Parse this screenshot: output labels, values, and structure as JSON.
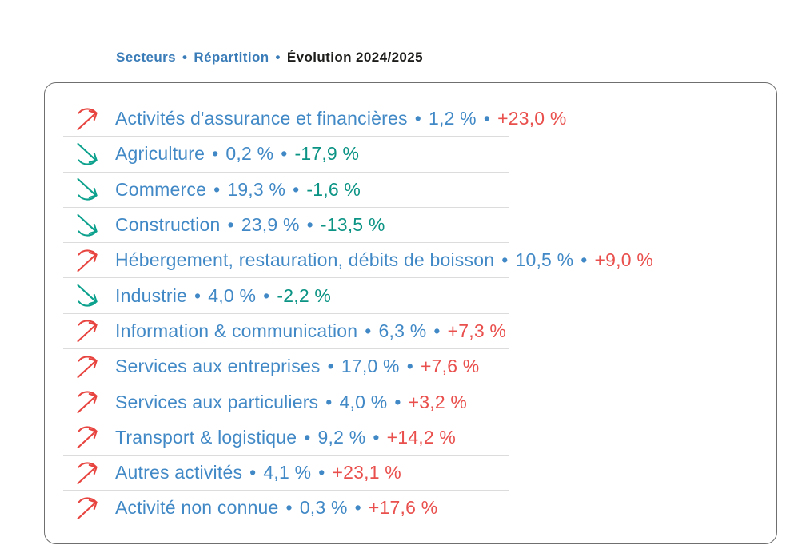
{
  "ui": {
    "separator": "•"
  },
  "colors": {
    "sector_blue": "#4189c6",
    "header_blue": "#3a7cb8",
    "header_black": "#1d1d1b",
    "positive_red": "#e9504d",
    "negative_teal": "#0b9384",
    "divider_gray": "#dcdcdc",
    "card_border": "#6f6f6f"
  },
  "icons": {
    "up": "trend-up-arrow-icon",
    "down": "trend-down-arrow-icon"
  },
  "header": {
    "tabs": [
      {
        "label": "Secteurs"
      },
      {
        "label": "Répartition"
      },
      {
        "label": "Évolution 2024/2025"
      }
    ]
  },
  "rows": [
    {
      "sector": "Activités d'assurance et financières",
      "share": "1,2 %",
      "evolution": "+23,0 %",
      "direction": "up"
    },
    {
      "sector": "Agriculture",
      "share": "0,2 %",
      "evolution": "-17,9 %",
      "direction": "down"
    },
    {
      "sector": "Commerce",
      "share": "19,3 %",
      "evolution": "-1,6 %",
      "direction": "down"
    },
    {
      "sector": "Construction",
      "share": "23,9 %",
      "evolution": "-13,5 %",
      "direction": "down"
    },
    {
      "sector": "Hébergement, restauration, débits de boisson",
      "share": "10,5 %",
      "evolution": "+9,0 %",
      "direction": "up"
    },
    {
      "sector": "Industrie",
      "share": "4,0 %",
      "evolution": "-2,2 %",
      "direction": "down"
    },
    {
      "sector": "Information & communication",
      "share": "6,3 %",
      "evolution": "+7,3 %",
      "direction": "up"
    },
    {
      "sector": "Services aux entreprises",
      "share": "17,0 %",
      "evolution": "+7,6 %",
      "direction": "up"
    },
    {
      "sector": "Services aux particuliers",
      "share": "4,0 %",
      "evolution": "+3,2 %",
      "direction": "up"
    },
    {
      "sector": "Transport & logistique",
      "share": "9,2 %",
      "evolution": "+14,2 %",
      "direction": "up"
    },
    {
      "sector": "Autres activités",
      "share": "4,1 %",
      "evolution": "+23,1 %",
      "direction": "up"
    },
    {
      "sector": "Activité non connue",
      "share": "0,3 %",
      "evolution": "+17,6 %",
      "direction": "up"
    }
  ]
}
